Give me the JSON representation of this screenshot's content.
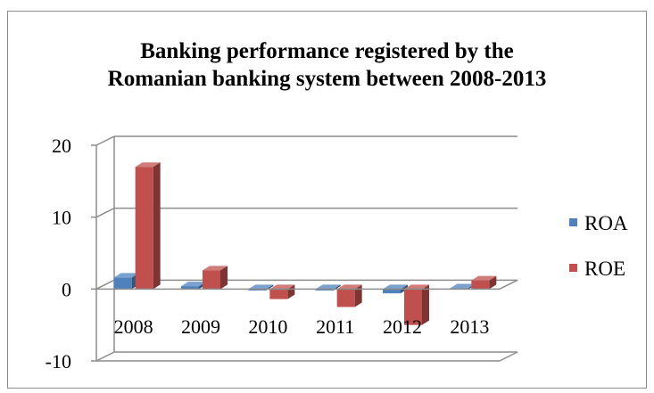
{
  "chart_data": {
    "type": "bar",
    "style": "3d-clustered-column",
    "title_lines": [
      "Banking performance registered by the",
      "Romanian banking system between 2008-2013"
    ],
    "categories": [
      "2008",
      "2009",
      "2010",
      "2011",
      "2012",
      "2013"
    ],
    "series": [
      {
        "name": "ROA",
        "color": "#4f81bd",
        "values": [
          1.6,
          0.4,
          -0.2,
          -0.2,
          -0.6,
          0.1
        ]
      },
      {
        "name": "ROE",
        "color": "#c0504d",
        "values": [
          17.0,
          2.6,
          -1.4,
          -2.5,
          -5.0,
          1.2
        ]
      }
    ],
    "ylim": [
      -10,
      20
    ],
    "yticks": [
      "-10",
      "0",
      "10",
      "20"
    ],
    "ytick_values": [
      -10,
      0,
      10,
      20
    ],
    "grid": true,
    "legend_position": "right"
  }
}
